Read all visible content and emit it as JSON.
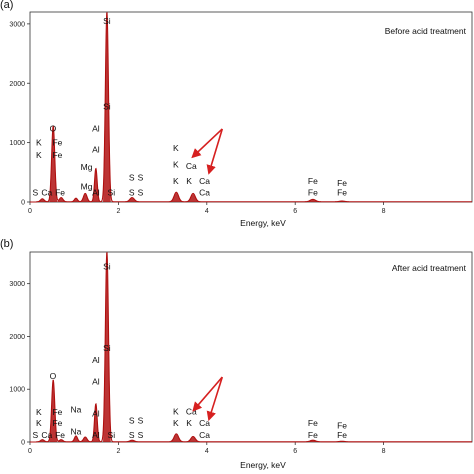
{
  "chart_data": [
    {
      "type": "line",
      "panel_label": "(a)",
      "title": "Before acid treatment",
      "xlabel": "Energy, keV",
      "ylabel": "",
      "xlim": [
        0,
        10
      ],
      "ylim": [
        0,
        3200
      ],
      "x_ticks": [
        "0",
        "2",
        "4",
        "6",
        "8"
      ],
      "y_ticks": [
        "0",
        "1000",
        "2000",
        "3000"
      ],
      "grid": false,
      "legend": "none",
      "line_color": "#b01010",
      "arrow_color": "#d62020",
      "peaks": [
        {
          "x": 0.28,
          "y": 50,
          "w": 0.04
        },
        {
          "x": 0.525,
          "y": 1280,
          "w": 0.035
        },
        {
          "x": 0.705,
          "y": 70,
          "w": 0.04
        },
        {
          "x": 1.04,
          "y": 60,
          "w": 0.035
        },
        {
          "x": 1.25,
          "y": 140,
          "w": 0.04
        },
        {
          "x": 1.49,
          "y": 560,
          "w": 0.03
        },
        {
          "x": 1.74,
          "y": 3200,
          "w": 0.035
        },
        {
          "x": 2.31,
          "y": 70,
          "w": 0.05
        },
        {
          "x": 3.31,
          "y": 160,
          "w": 0.05
        },
        {
          "x": 3.69,
          "y": 140,
          "w": 0.05
        },
        {
          "x": 6.4,
          "y": 40,
          "w": 0.06
        },
        {
          "x": 7.06,
          "y": 12,
          "w": 0.06
        }
      ],
      "element_labels": [
        {
          "text": "Si",
          "x": 1.74,
          "y": 3000
        },
        {
          "text": "Si",
          "x": 1.74,
          "y": 1560
        },
        {
          "text": "O",
          "x": 0.52,
          "y": 1190
        },
        {
          "text": "Al",
          "x": 1.49,
          "y": 1190
        },
        {
          "text": "Al",
          "x": 1.49,
          "y": 830
        },
        {
          "text": "K",
          "x": 0.2,
          "y": 950
        },
        {
          "text": "K",
          "x": 0.2,
          "y": 740
        },
        {
          "text": "S",
          "x": 0.12,
          "y": 110
        },
        {
          "text": "Ca",
          "x": 0.38,
          "y": 110
        },
        {
          "text": "Fe",
          "x": 0.62,
          "y": 950
        },
        {
          "text": "Fe",
          "x": 0.62,
          "y": 740
        },
        {
          "text": "Fe",
          "x": 0.68,
          "y": 110
        },
        {
          "text": "Mg",
          "x": 1.28,
          "y": 540
        },
        {
          "text": "Mg",
          "x": 1.28,
          "y": 210
        },
        {
          "text": "Al",
          "x": 1.49,
          "y": 110
        },
        {
          "text": "Si",
          "x": 1.84,
          "y": 110
        },
        {
          "text": "S",
          "x": 2.3,
          "y": 360
        },
        {
          "text": "S",
          "x": 2.5,
          "y": 360
        },
        {
          "text": "S",
          "x": 2.3,
          "y": 110
        },
        {
          "text": "S",
          "x": 2.5,
          "y": 110
        },
        {
          "text": "K",
          "x": 3.3,
          "y": 860
        },
        {
          "text": "K",
          "x": 3.3,
          "y": 580
        },
        {
          "text": "K",
          "x": 3.3,
          "y": 300
        },
        {
          "text": "K",
          "x": 3.6,
          "y": 300
        },
        {
          "text": "Ca",
          "x": 3.65,
          "y": 560
        },
        {
          "text": "Ca",
          "x": 3.95,
          "y": 300
        },
        {
          "text": "Ca",
          "x": 3.95,
          "y": 110
        },
        {
          "text": "Fe",
          "x": 6.4,
          "y": 300
        },
        {
          "text": "Fe",
          "x": 6.4,
          "y": 110
        },
        {
          "text": "Fe",
          "x": 7.06,
          "y": 270
        },
        {
          "text": "Fe",
          "x": 7.06,
          "y": 110
        }
      ],
      "arrows": [
        {
          "from": [
            4.35,
            1230
          ],
          "to": [
            3.68,
            760
          ]
        },
        {
          "from": [
            4.35,
            1230
          ],
          "to": [
            4.05,
            490
          ]
        }
      ]
    },
    {
      "type": "line",
      "panel_label": "(b)",
      "title": "After acid treatment",
      "xlabel": "Energy, keV",
      "ylabel": "",
      "xlim": [
        0,
        10
      ],
      "ylim": [
        0,
        3600
      ],
      "x_ticks": [
        "0",
        "2",
        "4",
        "6",
        "8"
      ],
      "y_ticks": [
        "0",
        "1000",
        "2000",
        "3000"
      ],
      "grid": false,
      "legend": "none",
      "line_color": "#b01010",
      "arrow_color": "#d62020",
      "peaks": [
        {
          "x": 0.28,
          "y": 40,
          "w": 0.04
        },
        {
          "x": 0.525,
          "y": 1170,
          "w": 0.035
        },
        {
          "x": 0.705,
          "y": 40,
          "w": 0.04
        },
        {
          "x": 1.04,
          "y": 110,
          "w": 0.035
        },
        {
          "x": 1.25,
          "y": 90,
          "w": 0.04
        },
        {
          "x": 1.49,
          "y": 720,
          "w": 0.03
        },
        {
          "x": 1.74,
          "y": 3600,
          "w": 0.035
        },
        {
          "x": 2.31,
          "y": 30,
          "w": 0.05
        },
        {
          "x": 3.31,
          "y": 150,
          "w": 0.05
        },
        {
          "x": 3.69,
          "y": 100,
          "w": 0.05
        },
        {
          "x": 6.4,
          "y": 30,
          "w": 0.06
        },
        {
          "x": 7.06,
          "y": 10,
          "w": 0.06
        }
      ],
      "element_labels": [
        {
          "text": "Si",
          "x": 1.74,
          "y": 3270
        },
        {
          "text": "Si",
          "x": 1.74,
          "y": 1720
        },
        {
          "text": "O",
          "x": 0.52,
          "y": 1190
        },
        {
          "text": "Al",
          "x": 1.49,
          "y": 1500
        },
        {
          "text": "Al",
          "x": 1.49,
          "y": 1090
        },
        {
          "text": "Al",
          "x": 1.49,
          "y": 480
        },
        {
          "text": "Na",
          "x": 1.04,
          "y": 560
        },
        {
          "text": "K",
          "x": 0.2,
          "y": 510
        },
        {
          "text": "K",
          "x": 0.2,
          "y": 300
        },
        {
          "text": "S",
          "x": 0.12,
          "y": 80
        },
        {
          "text": "Ca",
          "x": 0.38,
          "y": 80
        },
        {
          "text": "Fe",
          "x": 0.62,
          "y": 510
        },
        {
          "text": "Fe",
          "x": 0.62,
          "y": 300
        },
        {
          "text": "Fe",
          "x": 0.68,
          "y": 80
        },
        {
          "text": "Na",
          "x": 1.04,
          "y": 140
        },
        {
          "text": "Al",
          "x": 1.49,
          "y": 80
        },
        {
          "text": "Si",
          "x": 1.84,
          "y": 80
        },
        {
          "text": "S",
          "x": 2.3,
          "y": 350
        },
        {
          "text": "S",
          "x": 2.5,
          "y": 350
        },
        {
          "text": "S",
          "x": 2.3,
          "y": 80
        },
        {
          "text": "S",
          "x": 2.5,
          "y": 80
        },
        {
          "text": "K",
          "x": 3.3,
          "y": 520
        },
        {
          "text": "K",
          "x": 3.3,
          "y": 300
        },
        {
          "text": "K",
          "x": 3.6,
          "y": 300
        },
        {
          "text": "Ca",
          "x": 3.65,
          "y": 520
        },
        {
          "text": "Ca",
          "x": 3.95,
          "y": 300
        },
        {
          "text": "Ca",
          "x": 3.95,
          "y": 80
        },
        {
          "text": "Fe",
          "x": 6.4,
          "y": 300
        },
        {
          "text": "Fe",
          "x": 6.4,
          "y": 80
        },
        {
          "text": "Fe",
          "x": 7.06,
          "y": 260
        },
        {
          "text": "Fe",
          "x": 7.06,
          "y": 80
        }
      ],
      "arrows": [
        {
          "from": [
            4.35,
            1230
          ],
          "to": [
            3.7,
            600
          ]
        },
        {
          "from": [
            4.35,
            1230
          ],
          "to": [
            4.05,
            430
          ]
        }
      ]
    }
  ]
}
